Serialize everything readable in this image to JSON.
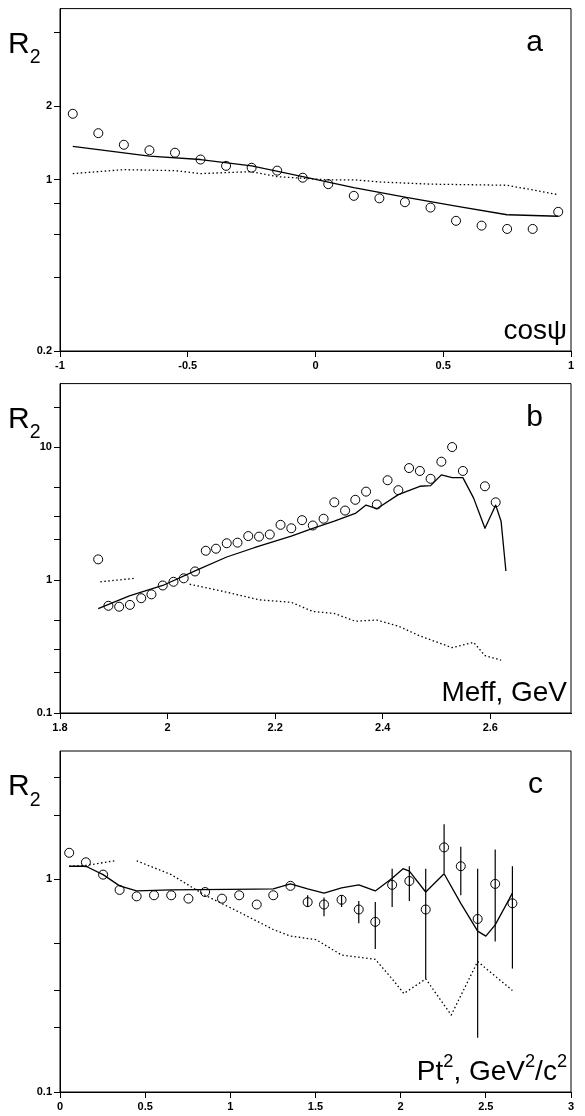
{
  "chart_data": [
    {
      "type": "scatter",
      "ylabel": "R$_{2}$",
      "xlabel": "cosψ",
      "annotations": [
        "a"
      ],
      "log": "y",
      "grid": false,
      "legend": false,
      "xlim": [
        -1,
        1
      ],
      "xticks": [
        -1,
        -0.5,
        0,
        0.5,
        1
      ],
      "ylim": [
        0.2,
        5
      ],
      "yticks": [
        0.2,
        {
          "value": 0.4,
          "label": null
        },
        {
          "value": 0.6,
          "label": null
        },
        {
          "value": 0.8,
          "label": null
        },
        1,
        2,
        {
          "value": 4,
          "label": null
        }
      ],
      "series": [
        {
          "type": "scatter",
          "marker": "circle",
          "color": "#000000",
          "x": [
            -0.95,
            -0.85,
            -0.75,
            -0.65,
            -0.55,
            -0.45,
            -0.35,
            -0.25,
            -0.15,
            -0.05,
            0.05,
            0.15,
            0.25,
            0.35,
            0.45,
            0.55,
            0.65,
            0.75,
            0.85,
            0.95
          ],
          "values": [
            1.86,
            1.55,
            1.39,
            1.32,
            1.29,
            1.21,
            1.14,
            1.12,
            1.09,
            1.02,
            0.96,
            0.86,
            0.84,
            0.81,
            0.77,
            0.68,
            0.65,
            0.63,
            0.63,
            0.74
          ]
        },
        {
          "type": "line",
          "marker": "none",
          "line_style": "solid",
          "color": "#000000",
          "x": [
            -0.95,
            -0.65,
            -0.45,
            -0.25,
            -0.05,
            0.15,
            0.35,
            0.55,
            0.75,
            0.95
          ],
          "values": [
            1.37,
            1.25,
            1.21,
            1.14,
            1.03,
            0.93,
            0.85,
            0.78,
            0.72,
            0.71
          ]
        },
        {
          "type": "line",
          "marker": "none",
          "line_style": "dotted",
          "color": "#000000",
          "x": [
            -0.95,
            -0.85,
            -0.75,
            -0.55,
            -0.45,
            -0.25,
            -0.15,
            0.05,
            0.15,
            0.25,
            0.45,
            0.75,
            0.95
          ],
          "values": [
            1.06,
            1.08,
            1.1,
            1.09,
            1.06,
            1.08,
            1.03,
            1.0,
            1.0,
            0.98,
            0.96,
            0.95,
            0.87
          ]
        }
      ]
    },
    {
      "type": "scatter",
      "ylabel": "R$_{2}$",
      "xlabel": "Meff, GeV",
      "annotations": [
        "b"
      ],
      "log": "y",
      "grid": false,
      "legend": false,
      "xlim": [
        1.8,
        2.75
      ],
      "xticks": [
        1.8,
        2,
        2.2,
        2.4,
        2.6
      ],
      "ylim": [
        0.1,
        30
      ],
      "yticks": [
        0.1,
        {
          "value": 0.2,
          "label": null
        },
        {
          "value": 0.3,
          "label": null
        },
        {
          "value": 0.5,
          "label": null
        },
        1,
        {
          "value": 2,
          "label": null
        },
        {
          "value": 3,
          "label": null
        },
        {
          "value": 5,
          "label": null
        },
        10,
        {
          "value": 20,
          "label": null
        }
      ],
      "series": [
        {
          "type": "scatter",
          "marker": "circle",
          "color": "#000000",
          "x": [
            1.871,
            1.89,
            1.91,
            1.93,
            1.951,
            1.97,
            1.991,
            2.011,
            2.03,
            2.051,
            2.071,
            2.09,
            2.11,
            2.13,
            2.15,
            2.17,
            2.19,
            2.21,
            2.23,
            2.25,
            2.27,
            2.29,
            2.31,
            2.33,
            2.349,
            2.369,
            2.389,
            2.409,
            2.429,
            2.449,
            2.469,
            2.489,
            2.509,
            2.529,
            2.549,
            2.59,
            2.61
          ],
          "values": [
            1.43,
            0.64,
            0.63,
            0.65,
            0.73,
            0.78,
            0.91,
            0.97,
            1.03,
            1.16,
            1.66,
            1.72,
            1.89,
            1.91,
            2.14,
            2.12,
            2.2,
            2.6,
            2.45,
            2.82,
            2.57,
            2.89,
            3.84,
            3.33,
            4.01,
            4.62,
            3.7,
            5.63,
            4.74,
            6.95,
            6.61,
            5.77,
            7.76,
            10.0,
            6.61,
            5.07,
            3.84
          ]
        },
        {
          "type": "line",
          "marker": "none",
          "line_style": "solid",
          "color": "#000000",
          "x": [
            1.871,
            1.929,
            1.991,
            2.051,
            2.11,
            2.17,
            2.23,
            2.27,
            2.31,
            2.349,
            2.369,
            2.389,
            2.429,
            2.469,
            2.489,
            2.509,
            2.529,
            2.549,
            2.569,
            2.59,
            2.61,
            2.62,
            2.629
          ],
          "values": [
            0.61,
            0.76,
            0.91,
            1.17,
            1.49,
            1.8,
            2.14,
            2.45,
            2.77,
            3.17,
            3.66,
            3.44,
            4.39,
            5.07,
            5.13,
            6.18,
            5.89,
            5.89,
            4.13,
            2.45,
            3.66,
            2.77,
            1.17
          ]
        },
        {
          "type": "line",
          "marker": "none",
          "line_style": "dotted",
          "color": "#000000",
          "x": [
            1.875,
            1.94,
            1.99,
            2.041,
            2.11,
            2.17,
            2.23,
            2.27,
            2.31,
            2.349,
            2.389,
            2.429,
            2.469,
            2.529,
            2.569,
            2.59,
            2.62
          ],
          "values": [
            0.97,
            1.03,
            null,
            0.93,
            0.81,
            0.71,
            0.68,
            0.58,
            0.56,
            0.49,
            0.5,
            0.45,
            0.38,
            0.31,
            0.34,
            0.27,
            0.25
          ]
        }
      ]
    },
    {
      "type": "scatter",
      "ylabel": "R$_{2}$",
      "xlabel": "Pt$^{2}$, GeV$^{2}$/c$^{2}$",
      "annotations": [
        "c"
      ],
      "log": "y",
      "grid": false,
      "legend": false,
      "xlim": [
        0,
        3
      ],
      "xticks": [
        0,
        0.5,
        1,
        1.5,
        2,
        2.5,
        3
      ],
      "ylim": [
        0.1,
        4
      ],
      "yticks": [
        0.1,
        {
          "value": 0.2,
          "label": null
        },
        {
          "value": 0.3,
          "label": null
        },
        {
          "value": 0.5,
          "label": null
        },
        1,
        {
          "value": 2,
          "label": null
        },
        {
          "value": 3,
          "label": null
        }
      ],
      "series": [
        {
          "type": "scatter",
          "marker": "circle",
          "color": "#000000",
          "x": [
            0.054,
            0.152,
            0.253,
            0.35,
            0.45,
            0.552,
            0.653,
            0.754,
            0.852,
            0.951,
            1.052,
            1.155,
            1.252,
            1.353,
            1.454,
            1.55,
            1.653,
            1.754,
            1.851,
            1.95,
            2.051,
            2.147,
            2.255,
            2.353,
            2.452,
            2.555,
            2.656
          ],
          "values": [
            1.33,
            1.2,
            1.05,
            0.89,
            0.83,
            0.84,
            0.84,
            0.81,
            0.87,
            0.81,
            0.84,
            0.76,
            0.84,
            0.93,
            0.78,
            0.76,
            0.8,
            0.72,
            0.63,
            0.94,
            0.98,
            0.72,
            1.41,
            1.15,
            0.65,
            0.95,
            0.77
          ],
          "errors": [
            null,
            null,
            null,
            null,
            null,
            null,
            null,
            null,
            null,
            null,
            null,
            null,
            null,
            null,
            [
              0.74,
              0.84
            ],
            [
              0.67,
              0.82
            ],
            [
              0.74,
              0.84
            ],
            [
              0.62,
              0.79
            ],
            [
              0.47,
              0.78
            ],
            [
              0.74,
              1.12
            ],
            [
              0.79,
              1.15
            ],
            [
              0.34,
              1.12
            ],
            [
              1.07,
              1.81
            ],
            [
              0.84,
              1.42
            ],
            [
              0.18,
              1.12
            ],
            [
              0.51,
              1.38
            ],
            [
              0.38,
              1.15
            ]
          ]
        },
        {
          "type": "line",
          "marker": "none",
          "line_style": "solid",
          "color": "#000000",
          "x": [
            0.054,
            0.152,
            0.253,
            0.35,
            0.45,
            0.653,
            1.252,
            1.353,
            1.454,
            1.55,
            1.653,
            1.754,
            1.851,
            1.95,
            2.014,
            2.051,
            2.147,
            2.255,
            2.353,
            2.452,
            2.5,
            2.555,
            2.656
          ],
          "values": [
            1.15,
            1.15,
            1.05,
            0.93,
            0.88,
            0.89,
            0.9,
            0.95,
            0.9,
            0.86,
            0.91,
            0.94,
            0.88,
            1.01,
            1.12,
            1.09,
            0.87,
            1.06,
            0.77,
            0.57,
            0.54,
            0.61,
            0.86
          ]
        },
        {
          "type": "line",
          "marker": "none",
          "line_style": "dotted",
          "color": "#000000",
          "x": [
            0.054,
            0.152,
            0.322,
            0.39,
            0.45,
            0.653,
            0.852,
            1.052,
            1.252,
            1.353,
            1.503,
            1.653,
            1.754,
            1.851,
            1.95,
            2.019,
            2.147,
            2.297,
            2.452,
            2.656
          ],
          "values": [
            1.15,
            1.16,
            1.22,
            null,
            1.22,
            1.05,
            0.84,
            0.7,
            0.58,
            0.54,
            0.52,
            0.44,
            0.43,
            0.42,
            0.34,
            0.29,
            0.34,
            0.23,
            0.41,
            0.3
          ]
        }
      ]
    }
  ]
}
